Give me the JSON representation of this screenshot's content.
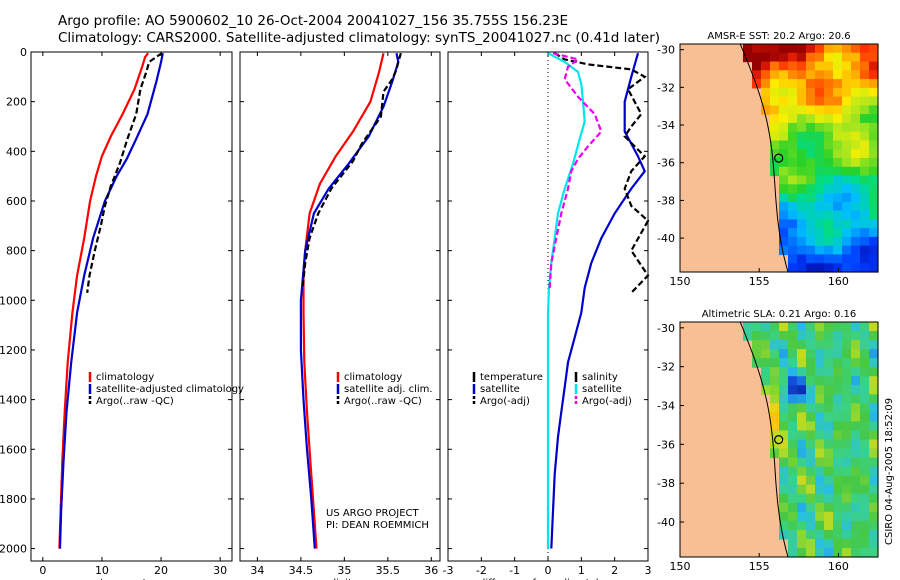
{
  "header": {
    "line1": "Argo profile: AO 5900602_10 26-Oct-2004 20041027_156 35.755S 156.23E",
    "line2": "Climatology: CARS2000. Satellite-adjusted climatology: synTS_20041027.nc (0.41d later)"
  },
  "credits": {
    "project": "US ARGO PROJECT",
    "pi": "PI: DEAN ROEMMICH",
    "stamp": "CSIRO 04-Aug-2005 18:52:09"
  },
  "colors": {
    "climatology": "#ff0000",
    "satellite": "#0000cc",
    "argo": "#000000",
    "sal_satellite": "#00e5ee",
    "sal_argo": "#ee00ee",
    "land": "#f7bf93"
  },
  "chart_data": [
    {
      "type": "line",
      "id": "temperature",
      "xlabel": "temperature",
      "xlim": [
        -2,
        32
      ],
      "ylim": [
        0,
        2050
      ],
      "y_inverted": true,
      "xticks": [
        "0",
        "10",
        "20",
        "30"
      ],
      "xtick_values": [
        0,
        10,
        20,
        30
      ],
      "yticks": [
        "0",
        "200",
        "400",
        "600",
        "800",
        "1000",
        "1200",
        "1400",
        "1600",
        "1800",
        "2000"
      ],
      "ytick_values": [
        0,
        200,
        400,
        600,
        800,
        1000,
        1200,
        1400,
        1600,
        1800,
        2000
      ],
      "legend": [
        "climatology",
        "satellite-adjusted climatology",
        "Argo(..raw -QC)"
      ],
      "series": [
        {
          "name": "climatology",
          "color": "#ff0000",
          "dash": "",
          "points": [
            [
              17.8,
              5
            ],
            [
              17.3,
              20
            ],
            [
              16.8,
              60
            ],
            [
              15.5,
              150
            ],
            [
              13.5,
              250
            ],
            [
              11.5,
              340
            ],
            [
              10,
              420
            ],
            [
              9,
              500
            ],
            [
              8,
              600
            ],
            [
              7,
              750
            ],
            [
              5.8,
              900
            ],
            [
              5,
              1050
            ],
            [
              4.2,
              1250
            ],
            [
              3.7,
              1450
            ],
            [
              3.3,
              1650
            ],
            [
              3,
              1850
            ],
            [
              2.8,
              2000
            ]
          ]
        },
        {
          "name": "satellite-adjusted climatology",
          "color": "#0000cc",
          "dash": "",
          "points": [
            [
              20.3,
              5
            ],
            [
              20,
              40
            ],
            [
              19.2,
              120
            ],
            [
              17.7,
              250
            ],
            [
              15.8,
              350
            ],
            [
              14.2,
              430
            ],
            [
              12.5,
              500
            ],
            [
              10.5,
              600
            ],
            [
              8.5,
              750
            ],
            [
              7,
              900
            ],
            [
              5.8,
              1050
            ],
            [
              4.8,
              1250
            ],
            [
              4,
              1450
            ],
            [
              3.5,
              1650
            ],
            [
              3.1,
              1850
            ],
            [
              2.9,
              2000
            ]
          ]
        },
        {
          "name": "Argo(..raw -QC)",
          "color": "#000000",
          "dash": "6,3",
          "points": [
            [
              20.2,
              5
            ],
            [
              19.5,
              15
            ],
            [
              18,
              40
            ],
            [
              17.5,
              80
            ],
            [
              16.5,
              150
            ],
            [
              15.8,
              250
            ],
            [
              14.3,
              350
            ],
            [
              13,
              450
            ],
            [
              11.5,
              540
            ],
            [
              10.5,
              620
            ],
            [
              9.8,
              700
            ],
            [
              8.8,
              800
            ],
            [
              7.9,
              900
            ],
            [
              7.5,
              970
            ]
          ]
        }
      ]
    },
    {
      "type": "line",
      "id": "salinity",
      "xlabel": "salinity",
      "xlim": [
        33.8,
        36.1
      ],
      "ylim": [
        0,
        2050
      ],
      "y_inverted": true,
      "xticks": [
        "34",
        "34.5",
        "35",
        "35.5",
        "36"
      ],
      "xtick_values": [
        34,
        34.5,
        35,
        35.5,
        36
      ],
      "legend": [
        "climatology",
        "satellite adj. clim.",
        "Argo(..raw -QC)"
      ],
      "series": [
        {
          "name": "climatology",
          "color": "#ff0000",
          "dash": "",
          "points": [
            [
              35.45,
              5
            ],
            [
              35.4,
              80
            ],
            [
              35.3,
              200
            ],
            [
              35.1,
              320
            ],
            [
              34.9,
              420
            ],
            [
              34.72,
              530
            ],
            [
              34.6,
              650
            ],
            [
              34.55,
              800
            ],
            [
              34.53,
              900
            ],
            [
              34.53,
              1050
            ],
            [
              34.54,
              1250
            ],
            [
              34.57,
              1450
            ],
            [
              34.61,
              1650
            ],
            [
              34.65,
              1850
            ],
            [
              34.68,
              2000
            ]
          ]
        },
        {
          "name": "satellite adj. clim.",
          "color": "#0000cc",
          "dash": "",
          "points": [
            [
              35.6,
              5
            ],
            [
              35.62,
              40
            ],
            [
              35.55,
              120
            ],
            [
              35.45,
              220
            ],
            [
              35.28,
              340
            ],
            [
              35.05,
              450
            ],
            [
              34.82,
              550
            ],
            [
              34.65,
              650
            ],
            [
              34.55,
              800
            ],
            [
              34.5,
              1000
            ],
            [
              34.5,
              1200
            ],
            [
              34.53,
              1400
            ],
            [
              34.57,
              1600
            ],
            [
              34.62,
              1800
            ],
            [
              34.66,
              2000
            ]
          ]
        },
        {
          "name": "Argo(..raw -QC)",
          "color": "#000000",
          "dash": "6,3",
          "points": [
            [
              35.65,
              5
            ],
            [
              35.62,
              40
            ],
            [
              35.6,
              70
            ],
            [
              35.55,
              110
            ],
            [
              35.45,
              160
            ],
            [
              35.42,
              260
            ],
            [
              35.2,
              370
            ],
            [
              35.1,
              440
            ],
            [
              34.85,
              550
            ],
            [
              34.7,
              650
            ],
            [
              34.6,
              750
            ],
            [
              34.55,
              850
            ],
            [
              34.52,
              950
            ]
          ]
        }
      ]
    },
    {
      "type": "line",
      "id": "difference",
      "xlabel": "difference from climatology",
      "xlim": [
        -3,
        3
      ],
      "ylim": [
        0,
        2050
      ],
      "y_inverted": true,
      "xticks": [
        "-3",
        "-2",
        "-1",
        "0",
        "1",
        "2",
        "3"
      ],
      "xtick_values": [
        -3,
        -2,
        -1,
        0,
        1,
        2,
        3
      ],
      "legend_left": [
        "temperature",
        "satellite",
        "Argo(-adj)"
      ],
      "legend_right": [
        "salinity",
        "satellite",
        "Argo(-adj)"
      ],
      "series": [
        {
          "name": "temperature satellite",
          "color": "#0000cc",
          "dash": "",
          "points": [
            [
              2.7,
              5
            ],
            [
              2.5,
              100
            ],
            [
              2.3,
              200
            ],
            [
              2.3,
              320
            ],
            [
              2.7,
              420
            ],
            [
              2.9,
              480
            ],
            [
              2.5,
              550
            ],
            [
              2,
              650
            ],
            [
              1.6,
              750
            ],
            [
              1.3,
              850
            ],
            [
              1.1,
              950
            ],
            [
              1,
              1050
            ],
            [
              0.8,
              1150
            ],
            [
              0.6,
              1250
            ],
            [
              0.5,
              1350
            ],
            [
              0.4,
              1450
            ],
            [
              0.3,
              1550
            ],
            [
              0.2,
              1700
            ],
            [
              0.1,
              2000
            ]
          ]
        },
        {
          "name": "temperature Argo(-adj)",
          "color": "#000000",
          "dash": "6,3",
          "points": [
            [
              0.2,
              5
            ],
            [
              0.5,
              30
            ],
            [
              1.2,
              50
            ],
            [
              2.5,
              70
            ],
            [
              2.9,
              100
            ],
            [
              2.4,
              150
            ],
            [
              2.8,
              250
            ],
            [
              2.5,
              300
            ],
            [
              2.3,
              340
            ],
            [
              2.9,
              420
            ],
            [
              2.5,
              480
            ],
            [
              2.3,
              550
            ],
            [
              2.5,
              620
            ],
            [
              3,
              680
            ],
            [
              2.5,
              800
            ],
            [
              3,
              900
            ],
            [
              2.5,
              970
            ]
          ]
        },
        {
          "name": "salinity satellite",
          "color": "#00e5ee",
          "dash": "",
          "points": [
            [
              0,
              5
            ],
            [
              0.5,
              40
            ],
            [
              0.9,
              80
            ],
            [
              1,
              130
            ],
            [
              1.05,
              200
            ],
            [
              1.1,
              280
            ],
            [
              0.95,
              350
            ],
            [
              0.75,
              450
            ],
            [
              0.5,
              550
            ],
            [
              0.3,
              650
            ],
            [
              0.2,
              750
            ],
            [
              0.1,
              850
            ],
            [
              0.03,
              950
            ],
            [
              0,
              1050
            ],
            [
              0,
              1200
            ],
            [
              0,
              1400
            ],
            [
              0,
              1600
            ],
            [
              0,
              1800
            ],
            [
              0,
              2000
            ]
          ]
        },
        {
          "name": "salinity Argo(-adj)",
          "color": "#ee00ee",
          "dash": "6,3",
          "points": [
            [
              0.15,
              5
            ],
            [
              0.9,
              30
            ],
            [
              0.6,
              60
            ],
            [
              0.5,
              110
            ],
            [
              0.9,
              180
            ],
            [
              1.4,
              250
            ],
            [
              1.6,
              320
            ],
            [
              1.2,
              380
            ],
            [
              0.9,
              430
            ],
            [
              0.7,
              480
            ],
            [
              0.6,
              550
            ],
            [
              0.4,
              650
            ],
            [
              0.25,
              750
            ],
            [
              0.1,
              850
            ],
            [
              0.05,
              950
            ]
          ]
        }
      ]
    },
    {
      "type": "heatmap",
      "id": "sst-map",
      "title": "AMSR-E SST: 20.2  Argo: 20.6",
      "xlim": [
        150,
        162.5
      ],
      "ylim": [
        -41.8,
        -29.7
      ],
      "xticks": [
        "150",
        "155",
        "160"
      ],
      "xtick_values": [
        150,
        155,
        160
      ],
      "yticks": [
        "-30",
        "-32",
        "-34",
        "-36",
        "-38",
        "-40"
      ],
      "ytick_values": [
        -30,
        -32,
        -34,
        -36,
        -38,
        -40
      ],
      "marker": {
        "lon": 156.23,
        "lat": -35.755
      }
    },
    {
      "type": "heatmap",
      "id": "sla-map",
      "title": "Altimetric SLA: 0.21  Argo: 0.16",
      "xlim": [
        150,
        162.5
      ],
      "ylim": [
        -41.8,
        -29.7
      ],
      "xticks": [
        "150",
        "155",
        "160"
      ],
      "xtick_values": [
        150,
        155,
        160
      ],
      "yticks": [
        "-30",
        "-32",
        "-34",
        "-36",
        "-38",
        "-40"
      ],
      "ytick_values": [
        -30,
        -32,
        -34,
        -36,
        -38,
        -40
      ],
      "marker": {
        "lon": 156.23,
        "lat": -35.755
      }
    }
  ]
}
